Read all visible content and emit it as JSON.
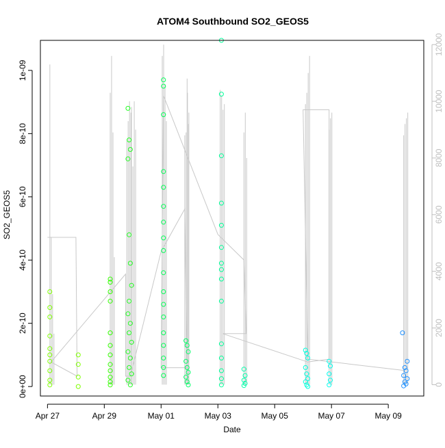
{
  "chart_data": {
    "type": "scatter",
    "title": "ATOM4 Southbound SO2_GEOS5",
    "xlabel": "Date",
    "ylabel": "SO2_GEOS5",
    "x_tick_labels": [
      "Apr 27",
      "Apr 29",
      "May 01",
      "May 03",
      "May 05",
      "May 07",
      "May 09"
    ],
    "x_tick_dates": [
      "2018-04-27",
      "2018-04-29",
      "2018-05-01",
      "2018-05-03",
      "2018-05-05",
      "2018-05-07",
      "2018-05-09"
    ],
    "x_range": [
      "2018-04-26T18:00",
      "2018-05-10T06:00"
    ],
    "y_left_ticks": [
      0,
      2e-10,
      4e-10,
      6e-10,
      8e-10,
      1e-09
    ],
    "y_left_tick_labels": [
      "0e+00",
      "2e-10",
      "4e-10",
      "6e-10",
      "8e-10",
      "1e-09"
    ],
    "y_left_range": [
      -3e-11,
      1.095e-09
    ],
    "y_right_ticks": [
      0,
      2000,
      4000,
      6000,
      8000,
      10000,
      12000
    ],
    "y_right_tick_labels": [
      "0",
      "2000",
      "4000",
      "6000",
      "8000",
      "10000",
      "12000"
    ],
    "y_right_range": [
      -400,
      12150
    ],
    "grid": false,
    "series": [
      {
        "color": "#7FFF00",
        "x": [
          "2018-04-27T02:00",
          "2018-04-27T02:00",
          "2018-04-27T02:00",
          "2018-04-27T02:00",
          "2018-04-27T02:00",
          "2018-04-27T02:00",
          "2018-04-27T02:00",
          "2018-04-27T02:00",
          "2018-04-27T02:00",
          "2018-04-27T02:00",
          "2018-04-28T02:00",
          "2018-04-28T02:00",
          "2018-04-28T02:00",
          "2018-04-28T02:00"
        ],
        "y": [
          3e-10,
          2.5e-10,
          2.2e-10,
          1.6e-10,
          1.2e-10,
          1e-10,
          8e-11,
          5e-11,
          2e-11,
          5e-12,
          1e-10,
          7e-11,
          3e-11,
          0.0
        ]
      },
      {
        "color": "#33FF00",
        "x": [
          "2018-04-29T05:00",
          "2018-04-29T05:00",
          "2018-04-29T05:00",
          "2018-04-29T05:00",
          "2018-04-29T05:00",
          "2018-04-29T05:00",
          "2018-04-29T05:00",
          "2018-04-29T05:00",
          "2018-04-29T05:00",
          "2018-04-29T05:00",
          "2018-04-29T05:00",
          "2018-04-29T05:00"
        ],
        "y": [
          3.4e-10,
          3.3e-10,
          3e-10,
          2.7e-10,
          1.7e-10,
          1.3e-10,
          1e-10,
          7e-11,
          5e-11,
          3e-11,
          1.5e-11,
          5e-12
        ]
      },
      {
        "color": "#22FF22",
        "x": [
          "2018-04-29T20:00",
          "2018-04-29T21:00",
          "2018-04-29T22:00",
          "2018-04-29T20:00",
          "2018-04-29T21:00",
          "2018-04-29T22:00",
          "2018-04-29T23:00",
          "2018-04-29T21:00",
          "2018-04-29T20:00",
          "2018-04-29T22:00",
          "2018-04-29T21:00",
          "2018-04-29T23:00",
          "2018-04-29T20:00",
          "2018-04-29T22:00",
          "2018-04-29T21:00",
          "2018-04-29T23:00",
          "2018-04-29T20:00",
          "2018-04-29T22:00"
        ],
        "y": [
          8.8e-10,
          7.8e-10,
          7.5e-10,
          7.2e-10,
          4.8e-10,
          3.9e-10,
          3.2e-10,
          2.7e-10,
          2.3e-10,
          2e-10,
          1.7e-10,
          1.4e-10,
          1.1e-10,
          9e-11,
          6e-11,
          4e-11,
          2e-11,
          5e-12
        ]
      },
      {
        "color": "#00FF55",
        "x": [
          "2018-05-01T02:00",
          "2018-05-01T02:00",
          "2018-05-01T02:00",
          "2018-05-01T02:00",
          "2018-05-01T02:00",
          "2018-05-01T02:00",
          "2018-05-01T02:00",
          "2018-05-01T02:00",
          "2018-05-01T02:00",
          "2018-05-01T02:00",
          "2018-05-01T02:00",
          "2018-05-01T02:00",
          "2018-05-01T02:00",
          "2018-05-01T02:00",
          "2018-05-01T02:00",
          "2018-05-01T02:00",
          "2018-05-01T02:00",
          "2018-05-01T02:00"
        ],
        "y": [
          9.7e-10,
          9.5e-10,
          8.6e-10,
          6.8e-10,
          6.3e-10,
          5.7e-10,
          5.2e-10,
          4.7e-10,
          4.3e-10,
          3.6e-10,
          3e-10,
          2.6e-10,
          2.2e-10,
          1.7e-10,
          1.3e-10,
          9e-11,
          6e-11,
          3.5e-11
        ]
      },
      {
        "color": "#00FF66",
        "x": [
          "2018-05-01T21:00",
          "2018-05-01T22:00",
          "2018-05-01T23:00",
          "2018-05-01T21:00",
          "2018-05-01T22:00",
          "2018-05-01T23:00",
          "2018-05-01T21:00",
          "2018-05-01T22:00",
          "2018-05-01T23:00"
        ],
        "y": [
          1.45e-10,
          1.3e-10,
          1.1e-10,
          8e-11,
          6e-11,
          4.5e-11,
          3e-11,
          1.5e-11,
          5e-12
        ]
      },
      {
        "color": "#00FF99",
        "x": [
          "2018-05-03T03:00",
          "2018-05-03T03:00",
          "2018-05-03T03:00",
          "2018-05-03T03:00",
          "2018-05-03T03:00",
          "2018-05-03T03:00",
          "2018-05-03T03:00",
          "2018-05-03T03:00",
          "2018-05-03T03:00",
          "2018-05-03T03:00",
          "2018-05-03T03:00",
          "2018-05-03T03:00",
          "2018-05-03T03:00",
          "2018-05-03T03:00",
          "2018-05-03T03:00"
        ],
        "y": [
          1.095e-09,
          9.25e-10,
          7.3e-10,
          5.8e-10,
          5.1e-10,
          4.4e-10,
          3.9e-10,
          3.7e-10,
          3.4e-10,
          2.7e-10,
          1.35e-10,
          9e-11,
          5e-11,
          2.5e-11,
          5e-12
        ]
      },
      {
        "color": "#00FFAA",
        "x": [
          "2018-05-03T22:00",
          "2018-05-03T23:00",
          "2018-05-03T22:00",
          "2018-05-03T23:00",
          "2018-05-03T22:00"
        ],
        "y": [
          5.5e-11,
          3.5e-11,
          2e-11,
          1e-11,
          3e-12
        ]
      },
      {
        "color": "#00FFDD",
        "x": [
          "2018-05-06T02:00",
          "2018-05-06T03:00",
          "2018-05-06T04:00",
          "2018-05-06T02:00",
          "2018-05-06T03:00",
          "2018-05-06T04:00",
          "2018-05-06T02:00",
          "2018-05-06T03:00",
          "2018-05-06T04:00"
        ],
        "y": [
          1.15e-10,
          1.05e-10,
          9e-11,
          6e-11,
          4e-11,
          2.5e-11,
          1.5e-11,
          5e-12,
          0.0
        ]
      },
      {
        "color": "#00FFEE",
        "x": [
          "2018-05-06T22:00",
          "2018-05-06T23:00",
          "2018-05-06T22:00",
          "2018-05-06T23:00",
          "2018-05-06T22:00"
        ],
        "y": [
          8e-11,
          6.5e-11,
          4e-11,
          2e-11,
          5e-12
        ]
      },
      {
        "color": "#1E90FF",
        "x": [
          "2018-05-09T12:00",
          "2018-05-09T16:00",
          "2018-05-09T14:00",
          "2018-05-09T15:00",
          "2018-05-09T13:00",
          "2018-05-09T16:00",
          "2018-05-09T14:00",
          "2018-05-09T15:00",
          "2018-05-09T13:00"
        ],
        "y": [
          1.7e-10,
          8e-11,
          6e-11,
          5e-11,
          3.5e-11,
          2.5e-11,
          1.5e-11,
          8e-12,
          2e-12
        ]
      }
    ],
    "altitude_profile": {
      "axis": "right",
      "color": "#C8C8C8",
      "spikes": [
        {
          "x": "2018-04-27T02:00",
          "values": [
            11300,
            5200,
            3200,
            1800
          ]
        },
        {
          "x": "2018-04-29T05:00",
          "values": [
            10300,
            11600,
            8900,
            4500
          ]
        },
        {
          "x": "2018-04-29T19:00",
          "values": [
            8600,
            9300,
            10000,
            9600
          ]
        },
        {
          "x": "2018-04-29T23:00",
          "values": [
            9800,
            7700,
            10000,
            9000
          ]
        },
        {
          "x": "2018-05-01T01:00",
          "values": [
            11600,
            12000,
            10600,
            9300
          ]
        },
        {
          "x": "2018-05-01T20:00",
          "values": [
            8800,
            8900,
            10300,
            9600
          ]
        },
        {
          "x": "2018-05-01T22:00",
          "values": [
            10800,
            9200
          ]
        },
        {
          "x": "2018-05-03T02:00",
          "values": [
            10400,
            10200,
            9700,
            9900
          ]
        },
        {
          "x": "2018-05-03T22:00",
          "values": [
            8900,
            9600,
            8000
          ]
        },
        {
          "x": "2018-05-06T02:00",
          "values": [
            9900,
            10300,
            11000,
            11600
          ]
        },
        {
          "x": "2018-05-06T22:00",
          "values": [
            9000,
            9400,
            9600
          ]
        },
        {
          "x": "2018-05-09T13:00",
          "values": [
            8800,
            9200,
            9400,
            9600
          ]
        }
      ],
      "track": [
        {
          "x": "2018-04-27T00:00",
          "y": 5200
        },
        {
          "x": "2018-04-28T00:00",
          "y": 5200
        },
        {
          "x": "2018-04-28T01:00",
          "y": 300
        },
        {
          "x": "2018-04-27T03:00",
          "y": 800
        },
        {
          "x": "2018-04-29T18:00",
          "y": 3900
        },
        {
          "x": "2018-04-29T18:00",
          "y": 300
        },
        {
          "x": "2018-04-29T22:00",
          "y": 300
        },
        {
          "x": "2018-05-01T00:00",
          "y": 4700
        },
        {
          "x": "2018-05-01T20:00",
          "y": 6200
        },
        {
          "x": "2018-05-01T22:00",
          "y": 600
        },
        {
          "x": "2018-05-01T00:00",
          "y": 600
        },
        {
          "x": "2018-05-01T02:00",
          "y": 10200
        },
        {
          "x": "2018-05-03T00:00",
          "y": 5300
        },
        {
          "x": "2018-05-03T22:00",
          "y": 4400
        },
        {
          "x": "2018-05-04T00:00",
          "y": 1800
        },
        {
          "x": "2018-05-03T04:00",
          "y": 1800
        },
        {
          "x": "2018-05-06T04:00",
          "y": 800
        },
        {
          "x": "2018-05-06T22:00",
          "y": 900
        },
        {
          "x": "2018-05-06T22:00",
          "y": 9700
        },
        {
          "x": "2018-05-06T00:00",
          "y": 9700
        },
        {
          "x": "2018-05-06T04:00",
          "y": 900
        },
        {
          "x": "2018-05-09T14:00",
          "y": 500
        }
      ]
    }
  }
}
